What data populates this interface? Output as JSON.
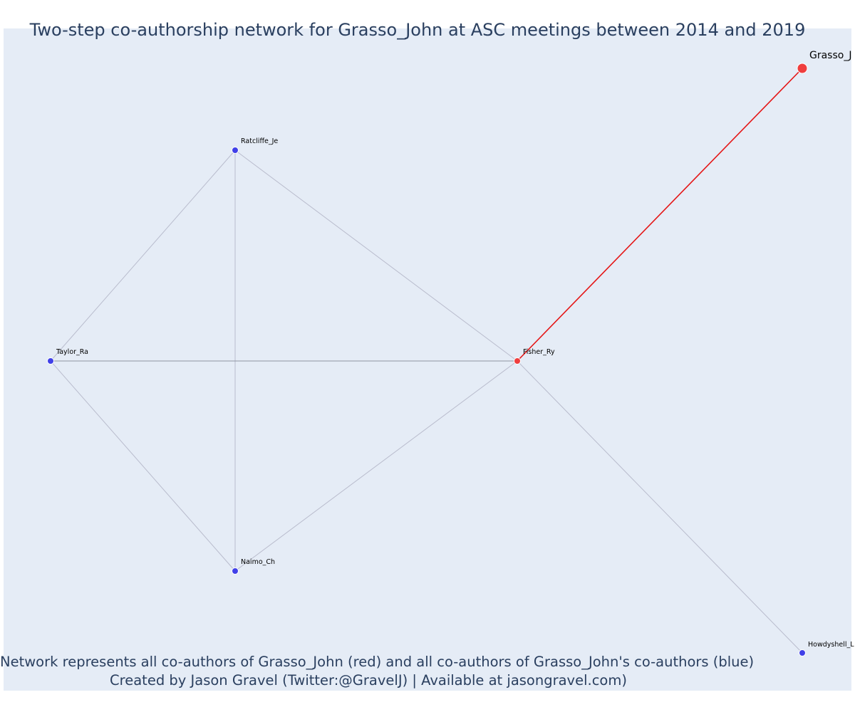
{
  "title": "Two-step co-authorship network for Grasso_John at ASC meetings between 2014 and 2019",
  "caption": {
    "line1": "Network represents all co-authors of Grasso_John (red) and all co-authors of Grasso_John's co-authors (blue)",
    "line2": "Created by Jason Gravel (Twitter:@GravelJ) | Available at jasongravel.com)"
  },
  "colors": {
    "background": "#e5ecf6",
    "edge": "#b9bccd",
    "edge_dark": "#8f93a3",
    "ego_edge": "#e51515",
    "red_node": "#ef3e3e",
    "blue_node": "#4040e8"
  },
  "network": {
    "nodes": [
      {
        "id": "Grasso_John",
        "label": "Grasso_J",
        "color": "red",
        "role": "ego"
      },
      {
        "id": "Fisher_Ry",
        "label": "Fisher_Ry",
        "color": "red",
        "role": "co-author"
      },
      {
        "id": "Ratcliffe_Je",
        "label": "Ratcliffe_Je",
        "color": "blue",
        "role": "co-author of co-author"
      },
      {
        "id": "Taylor_Ra",
        "label": "Taylor_Ra",
        "color": "blue",
        "role": "co-author of co-author"
      },
      {
        "id": "Naimo_Ch",
        "label": "Naimo_Ch",
        "color": "blue",
        "role": "co-author of co-author"
      },
      {
        "id": "Howdyshell_L",
        "label": "Howdyshell_L",
        "color": "blue",
        "role": "co-author of co-author"
      }
    ],
    "edges": [
      {
        "source": "Grasso_John",
        "target": "Fisher_Ry",
        "ego": true
      },
      {
        "source": "Ratcliffe_Je",
        "target": "Taylor_Ra"
      },
      {
        "source": "Ratcliffe_Je",
        "target": "Naimo_Ch"
      },
      {
        "source": "Ratcliffe_Je",
        "target": "Fisher_Ry"
      },
      {
        "source": "Taylor_Ra",
        "target": "Fisher_Ry",
        "strong": true
      },
      {
        "source": "Taylor_Ra",
        "target": "Naimo_Ch"
      },
      {
        "source": "Naimo_Ch",
        "target": "Fisher_Ry"
      },
      {
        "source": "Fisher_Ry",
        "target": "Howdyshell_L"
      }
    ]
  }
}
